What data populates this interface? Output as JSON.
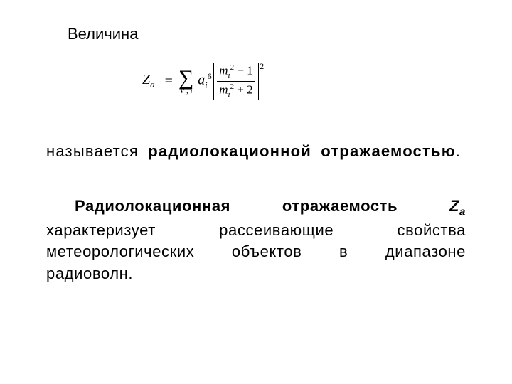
{
  "heading": "Величина",
  "formula": {
    "lhs_var": "Z",
    "lhs_sub": "a",
    "eq": "=",
    "sum_symbol": "∑",
    "sum_sub": "V , i",
    "a_var": "a",
    "a_sub": "i",
    "a_sup": "6",
    "frac_num_pre": "m",
    "frac_num_sub": "i",
    "frac_num_sup": "2",
    "frac_num_tail": " − 1",
    "frac_den_pre": "m",
    "frac_den_sub": "i",
    "frac_den_sup": "2",
    "frac_den_tail": " + 2",
    "abs_sup": "2"
  },
  "para1": {
    "t1": "называется ",
    "t2": "радиолокационной отражаемостью",
    "t3": "."
  },
  "para2": {
    "t1": "Радиолокационная отражаемость Z",
    "t1_bold_pre": "Радиолокационная отражаемость ",
    "t1_Z": "Z",
    "t1_sub": "a",
    "t2": " характеризует рассеивающие свойства метеорологических объектов в диапазоне радиоволн."
  },
  "style": {
    "bg": "#ffffff",
    "text_color": "#000000",
    "body_font_size": 22,
    "formula_font": "Times New Roman"
  }
}
